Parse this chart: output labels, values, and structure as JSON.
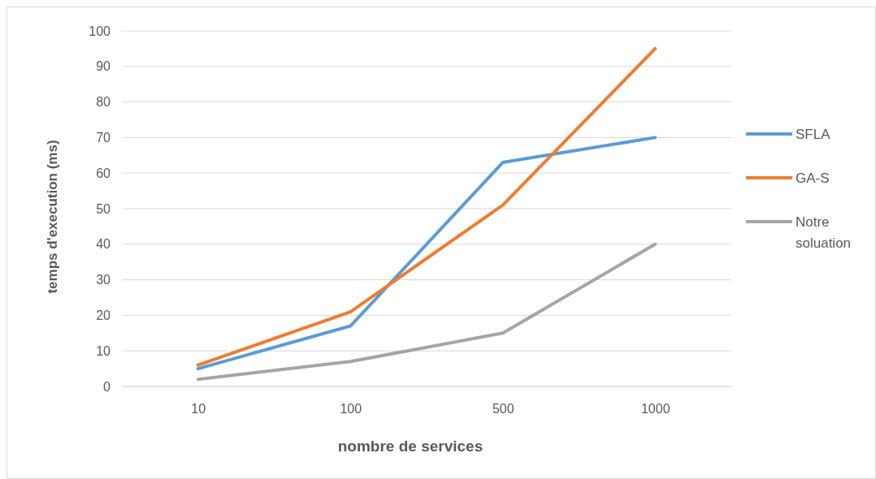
{
  "chart_data": {
    "type": "line",
    "xlabel": "nombre de services",
    "ylabel": "temps d'execution (ms)",
    "categories": [
      "10",
      "100",
      "500",
      "1000"
    ],
    "series": [
      {
        "name": "SFLA",
        "color": "#5b9bd5",
        "values": [
          5,
          17,
          63,
          70
        ]
      },
      {
        "name": "GA-S",
        "color": "#ed7d31",
        "values": [
          6,
          21,
          51,
          95
        ]
      },
      {
        "name": "Notre soluation",
        "color": "#a5a5a5",
        "values": [
          2,
          7,
          15,
          40
        ]
      }
    ],
    "ylim": [
      0,
      100
    ],
    "yticks": [
      0,
      10,
      20,
      30,
      40,
      50,
      60,
      70,
      80,
      90,
      100
    ],
    "grid": "y",
    "legend": "right",
    "marker": "none",
    "line_style": "solid"
  }
}
